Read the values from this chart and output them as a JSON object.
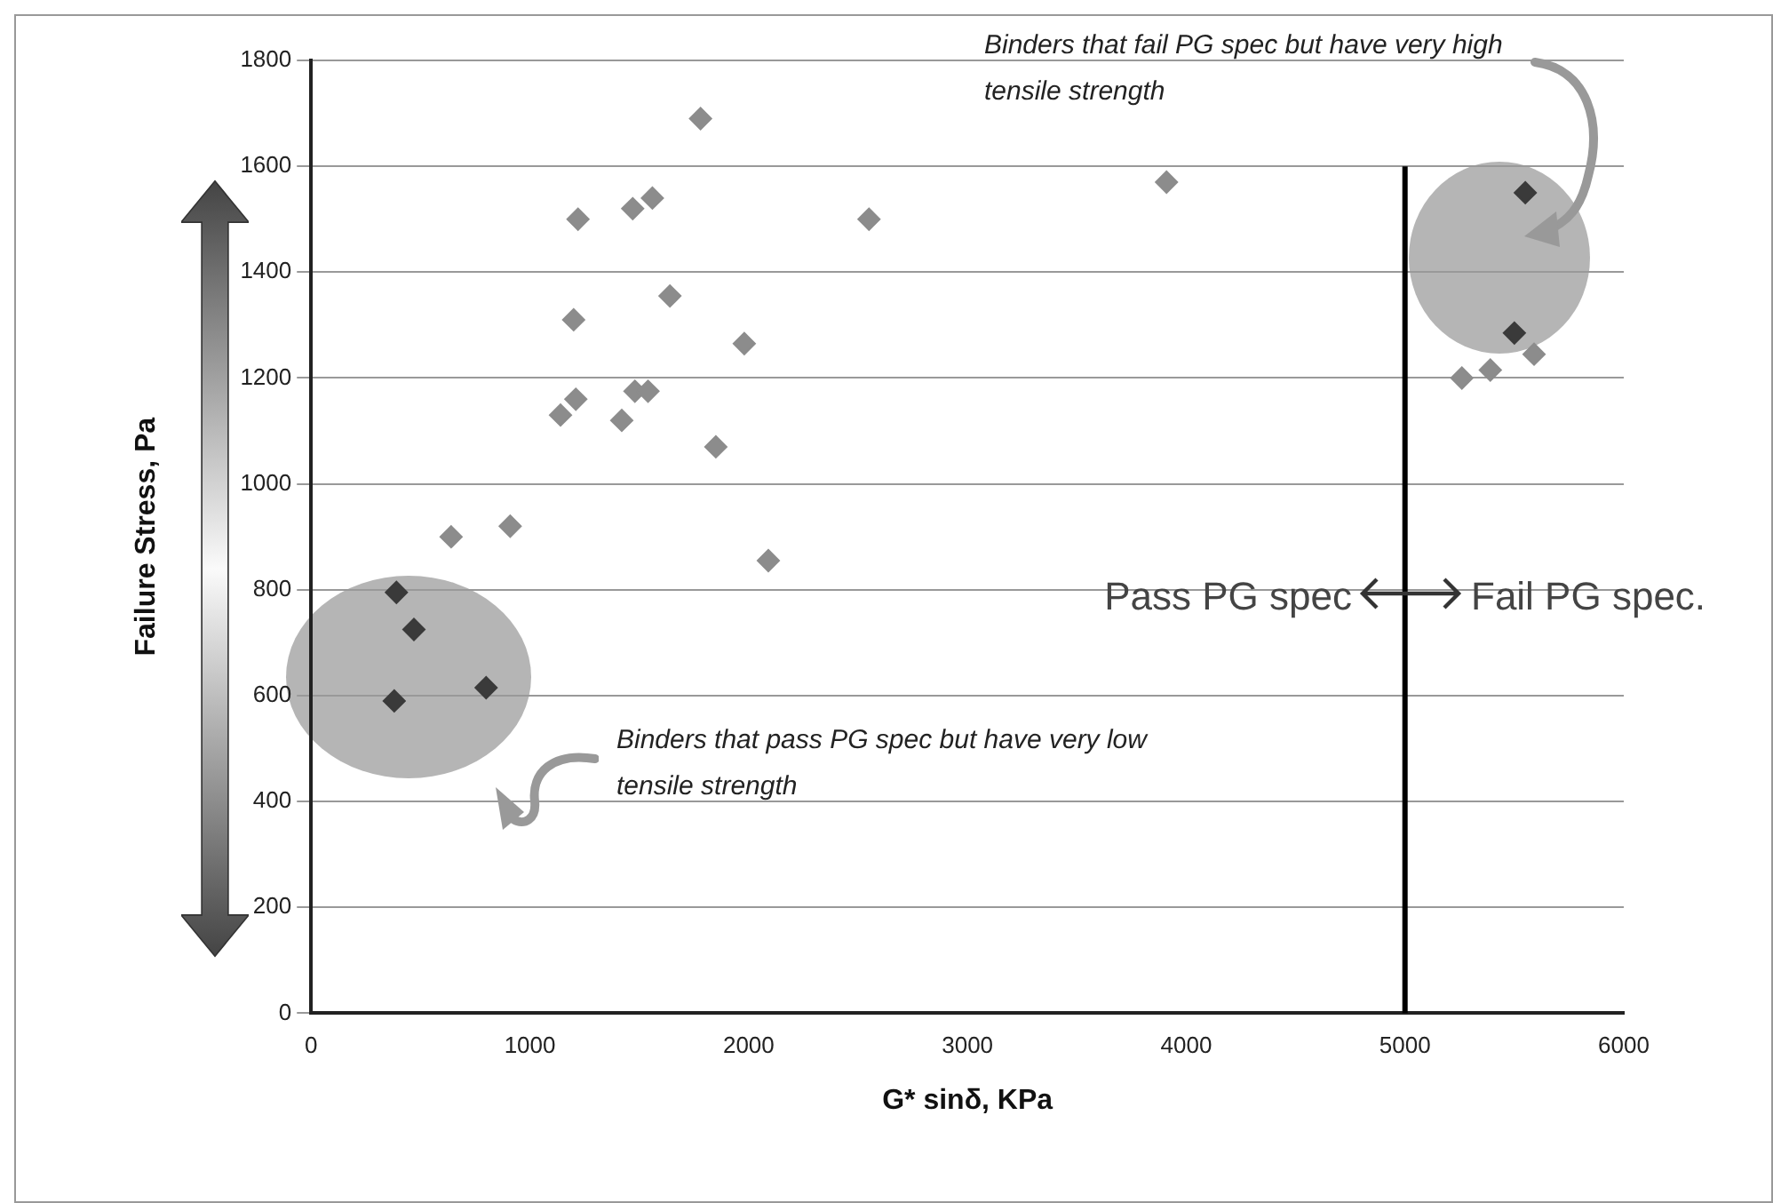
{
  "chart_data": {
    "type": "scatter",
    "xlabel": "G* sinδ, KPa",
    "ylabel": "Failure Stress, Pa",
    "xlim": [
      0,
      6000
    ],
    "xticks": [
      0,
      1000,
      2000,
      3000,
      4000,
      5000,
      6000
    ],
    "ylim": [
      0,
      1800
    ],
    "yticks": [
      0,
      200,
      400,
      600,
      800,
      1000,
      1200,
      1400,
      1600,
      1800
    ],
    "grid": "y",
    "marker": "diamond",
    "series": [
      {
        "color": "#8c8c8c",
        "x": [
          640,
          910,
          1140,
          1210,
          1200,
          1220,
          1420,
          1480,
          1540,
          1470,
          1560,
          1640,
          1980,
          1850,
          2090,
          2550,
          3910,
          1780,
          5260,
          5390,
          5590
        ],
        "values": [
          900,
          920,
          1130,
          1160,
          1310,
          1500,
          1120,
          1175,
          1175,
          1520,
          1540,
          1355,
          1265,
          1070,
          855,
          1500,
          1570,
          1690,
          1200,
          1215,
          1245
        ]
      },
      {
        "color": "#3a3a3a",
        "x": [
          390,
          470,
          380,
          800,
          5550,
          5500
        ],
        "values": [
          795,
          725,
          590,
          615,
          1550,
          1285
        ]
      },
      {
        "type": "line",
        "color": "#000000",
        "marker": "none",
        "x": [
          5000,
          5000
        ],
        "values": [
          0,
          1600
        ]
      }
    ],
    "annotations": [
      "Binders that fail PG spec but have very high tensile strength",
      "Binders that pass PG spec but have very low tensile strength",
      "Pass PG spec",
      "Fail PG spec."
    ]
  }
}
